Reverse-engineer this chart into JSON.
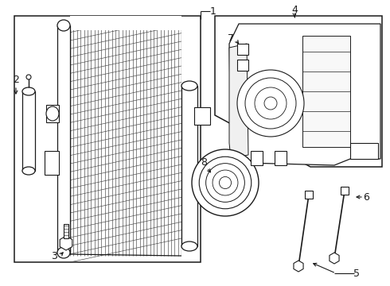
{
  "bg": "#ffffff",
  "lc": "#1a1a1a",
  "label_fs": 9,
  "figsize": [
    4.9,
    3.6
  ],
  "dpi": 100
}
